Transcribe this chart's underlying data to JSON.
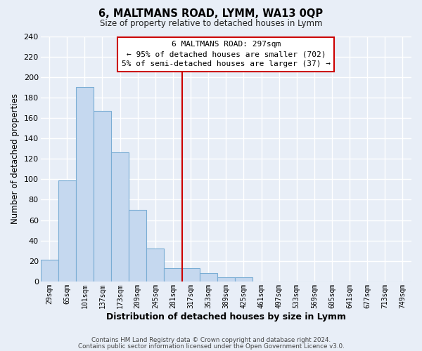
{
  "title": "6, MALTMANS ROAD, LYMM, WA13 0QP",
  "subtitle": "Size of property relative to detached houses in Lymm",
  "xlabel": "Distribution of detached houses by size in Lymm",
  "ylabel": "Number of detached properties",
  "bar_labels": [
    "29sqm",
    "65sqm",
    "101sqm",
    "137sqm",
    "173sqm",
    "209sqm",
    "245sqm",
    "281sqm",
    "317sqm",
    "353sqm",
    "389sqm",
    "425sqm",
    "461sqm",
    "497sqm",
    "533sqm",
    "569sqm",
    "605sqm",
    "641sqm",
    "677sqm",
    "713sqm",
    "749sqm"
  ],
  "bar_heights": [
    21,
    99,
    190,
    167,
    126,
    70,
    32,
    13,
    13,
    8,
    4,
    4,
    0,
    0,
    0,
    0,
    0,
    0,
    0,
    0,
    0
  ],
  "bar_color": "#c5d8ef",
  "bar_edge_color": "#7aadd4",
  "vline_color": "#cc0000",
  "ylim": [
    0,
    240
  ],
  "yticks": [
    0,
    20,
    40,
    60,
    80,
    100,
    120,
    140,
    160,
    180,
    200,
    220,
    240
  ],
  "annotation_title": "6 MALTMANS ROAD: 297sqm",
  "annotation_line1": "← 95% of detached houses are smaller (702)",
  "annotation_line2": "5% of semi-detached houses are larger (37) →",
  "footer1": "Contains HM Land Registry data © Crown copyright and database right 2024.",
  "footer2": "Contains public sector information licensed under the Open Government Licence v3.0.",
  "background_color": "#e8eef7",
  "plot_bg_color": "#e8eef7",
  "grid_color": "#ffffff",
  "fig_width": 6.0,
  "fig_height": 5.0,
  "dpi": 100
}
